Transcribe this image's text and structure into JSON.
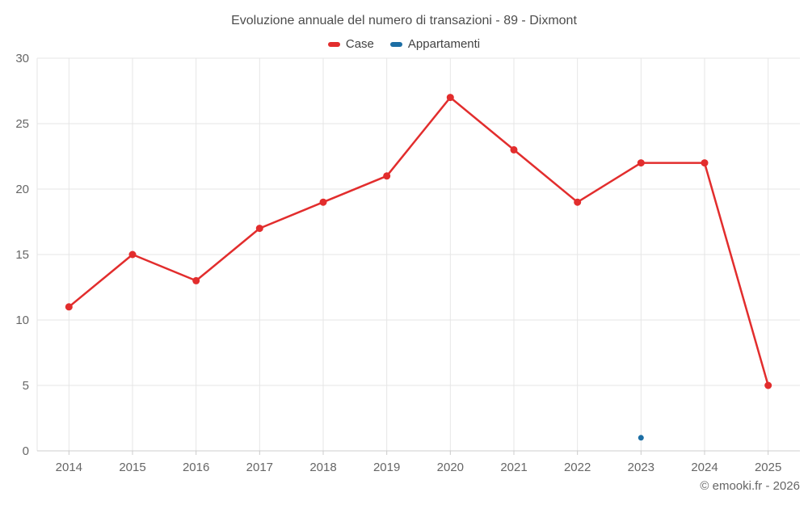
{
  "title": "Evoluzione annuale del numero di transazioni - 89 - Dixmont",
  "legend": [
    {
      "label": "Case",
      "color": "#e22d2d"
    },
    {
      "label": "Appartamenti",
      "color": "#1c6ea4"
    }
  ],
  "copyright": "© emooki.fr - 2026",
  "colors": {
    "case_series": "#e22d2d",
    "appartamenti_series": "#1c6ea4",
    "gridline": "#e6e6e6",
    "axis_line": "#cccccc",
    "tick": "#cccccc",
    "axis_label": "#666666",
    "title_text": "#4d4d4d",
    "background": "#ffffff"
  },
  "chart_data": {
    "type": "line",
    "title": "Evoluzione annuale del numero di transazioni - 89 - Dixmont",
    "categories": [
      "2014",
      "2015",
      "2016",
      "2017",
      "2018",
      "2019",
      "2020",
      "2021",
      "2022",
      "2023",
      "2024",
      "2025"
    ],
    "series": [
      {
        "name": "Case",
        "color": "#e22d2d",
        "marker_radius": 4.5,
        "line_width": 2.5,
        "values": [
          11,
          15,
          13,
          17,
          19,
          21,
          27,
          23,
          19,
          22,
          22,
          5
        ]
      },
      {
        "name": "Appartamenti",
        "color": "#1c6ea4",
        "marker_radius": 3.5,
        "line_width": 2.5,
        "values": [
          null,
          null,
          null,
          null,
          null,
          null,
          null,
          null,
          null,
          1,
          null,
          null
        ]
      }
    ],
    "xlabel": "",
    "ylabel": "",
    "ylim": [
      0,
      30
    ],
    "yticks": [
      0,
      5,
      10,
      15,
      20,
      25,
      30
    ],
    "grid": true,
    "legend_position": "top"
  }
}
